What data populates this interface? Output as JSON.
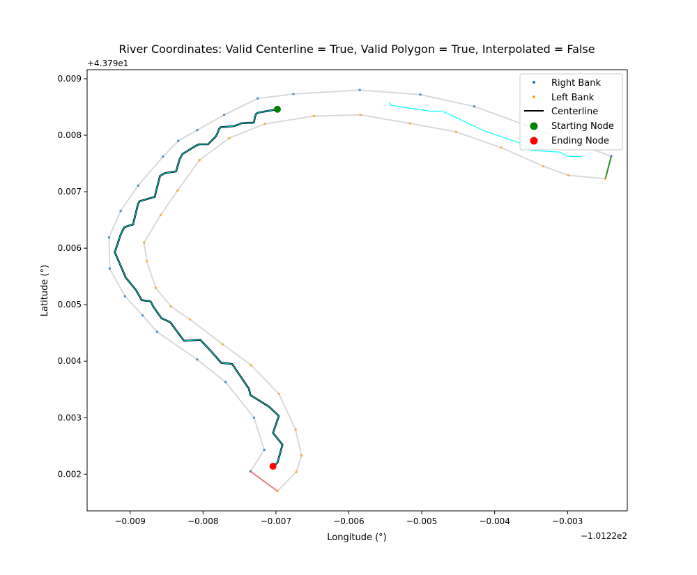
{
  "chart_data": {
    "type": "line",
    "title": "River Coordinates: Valid Centerline = True, Valid Polygon = True, Interpolated = False",
    "xlabel": "Longitude (°)",
    "ylabel": "Latitude (°)",
    "x_offset_label": "−1.0122e2",
    "y_offset_label": "+4.379e1",
    "xlim": [
      -0.00959,
      -0.00218
    ],
    "ylim": [
      0.00135,
      0.00916
    ],
    "xticks": [
      -0.009,
      -0.008,
      -0.007,
      -0.006,
      -0.005,
      -0.004,
      -0.003
    ],
    "xtick_labels": [
      "−0.009",
      "−0.008",
      "−0.007",
      "−0.006",
      "−0.005",
      "−0.004",
      "−0.003"
    ],
    "yticks": [
      0.002,
      0.003,
      0.004,
      0.005,
      0.006,
      0.007,
      0.008,
      0.009
    ],
    "ytick_labels": [
      "0.002",
      "0.003",
      "0.004",
      "0.005",
      "0.006",
      "0.007",
      "0.008",
      "0.009"
    ],
    "grid": false,
    "legend": {
      "position": "top-right",
      "entries": [
        {
          "label": "Right Bank",
          "marker": "dot",
          "color": "#1f77b4"
        },
        {
          "label": "Left Bank",
          "marker": "dot",
          "color": "#ff9f0a"
        },
        {
          "label": "Centerline",
          "marker": "line",
          "color": "#000000"
        },
        {
          "label": "Starting Node",
          "marker": "circle",
          "color": "#008000"
        },
        {
          "label": "Ending Node",
          "marker": "circle",
          "color": "#ff0000"
        }
      ]
    },
    "series": [
      {
        "name": "Right Bank",
        "color": "#1f77b4",
        "outline_color": "#d9d9d9",
        "points": [
          [
            -0.0024,
            0.00763
          ],
          [
            -0.00358,
            0.00818
          ],
          [
            -0.00428,
            0.00851
          ],
          [
            -0.00502,
            0.00872
          ],
          [
            -0.00585,
            0.0088
          ],
          [
            -0.00676,
            0.00873
          ],
          [
            -0.00725,
            0.00865
          ],
          [
            -0.00771,
            0.00836
          ],
          [
            -0.00808,
            0.00809
          ],
          [
            -0.00834,
            0.0079
          ],
          [
            -0.00855,
            0.00762
          ],
          [
            -0.00889,
            0.00711
          ],
          [
            -0.00913,
            0.00666
          ],
          [
            -0.00929,
            0.00619
          ],
          [
            -0.00928,
            0.00564
          ],
          [
            -0.00907,
            0.00515
          ],
          [
            -0.00883,
            0.00481
          ],
          [
            -0.00863,
            0.00452
          ],
          [
            -0.00808,
            0.00403
          ],
          [
            -0.00769,
            0.00363
          ],
          [
            -0.0073,
            0.003
          ],
          [
            -0.00716,
            0.00243
          ],
          [
            -0.00735,
            0.00205
          ]
        ]
      },
      {
        "name": "Left Bank",
        "color": "#ff9f0a",
        "outline_color": "#d9d9d9",
        "points": [
          [
            -0.00248,
            0.00723
          ],
          [
            -0.00299,
            0.00729
          ],
          [
            -0.00333,
            0.00745
          ],
          [
            -0.00391,
            0.00778
          ],
          [
            -0.00453,
            0.00806
          ],
          [
            -0.00516,
            0.00821
          ],
          [
            -0.00584,
            0.00836
          ],
          [
            -0.00648,
            0.00834
          ],
          [
            -0.00715,
            0.0082
          ],
          [
            -0.00764,
            0.00795
          ],
          [
            -0.00805,
            0.00756
          ],
          [
            -0.00835,
            0.00702
          ],
          [
            -0.00858,
            0.00659
          ],
          [
            -0.00881,
            0.0061
          ],
          [
            -0.00877,
            0.00577
          ],
          [
            -0.00865,
            0.0053
          ],
          [
            -0.00844,
            0.00497
          ],
          [
            -0.00818,
            0.00474
          ],
          [
            -0.00773,
            0.0043
          ],
          [
            -0.00734,
            0.00393
          ],
          [
            -0.00696,
            0.00342
          ],
          [
            -0.00673,
            0.00279
          ],
          [
            -0.00665,
            0.00233
          ],
          [
            -0.00672,
            0.00204
          ],
          [
            -0.00698,
            0.0017
          ]
        ]
      },
      {
        "name": "Centerline",
        "color": "#00bfbf",
        "points": [
          [
            -0.00698,
            0.00846
          ],
          [
            -0.00724,
            0.0084
          ],
          [
            -0.00727,
            0.00838
          ],
          [
            -0.00729,
            0.00832
          ],
          [
            -0.0073,
            0.00823
          ],
          [
            -0.00732,
            0.00822
          ],
          [
            -0.00738,
            0.00822
          ],
          [
            -0.00748,
            0.00821
          ],
          [
            -0.00753,
            0.00818
          ],
          [
            -0.00758,
            0.00816
          ],
          [
            -0.00776,
            0.00814
          ],
          [
            -0.00778,
            0.00811
          ],
          [
            -0.00781,
            0.00801
          ],
          [
            -0.00783,
            0.00797
          ],
          [
            -0.00787,
            0.00792
          ],
          [
            -0.00793,
            0.00784
          ],
          [
            -0.00805,
            0.00784
          ],
          [
            -0.00809,
            0.00782
          ],
          [
            -0.00828,
            0.00767
          ],
          [
            -0.00832,
            0.00758
          ],
          [
            -0.00837,
            0.00736
          ],
          [
            -0.00852,
            0.00733
          ],
          [
            -0.00859,
            0.00728
          ],
          [
            -0.00865,
            0.00698
          ],
          [
            -0.00866,
            0.00691
          ],
          [
            -0.00887,
            0.00683
          ],
          [
            -0.00889,
            0.00679
          ],
          [
            -0.00896,
            0.00642
          ],
          [
            -0.00899,
            0.00641
          ],
          [
            -0.00908,
            0.00637
          ],
          [
            -0.00913,
            0.00624
          ],
          [
            -0.00921,
            0.00593
          ],
          [
            -0.00906,
            0.00548
          ],
          [
            -0.00892,
            0.00526
          ],
          [
            -0.00884,
            0.00508
          ],
          [
            -0.00872,
            0.00506
          ],
          [
            -0.00868,
            0.00496
          ],
          [
            -0.00857,
            0.00476
          ],
          [
            -0.00845,
            0.00469
          ],
          [
            -0.00833,
            0.00448
          ],
          [
            -0.00826,
            0.00436
          ],
          [
            -0.00804,
            0.00438
          ],
          [
            -0.0079,
            0.00419
          ],
          [
            -0.00775,
            0.00397
          ],
          [
            -0.0076,
            0.00395
          ],
          [
            -0.00737,
            0.00351
          ],
          [
            -0.00735,
            0.0034
          ],
          [
            -0.00709,
            0.00319
          ],
          [
            -0.00696,
            0.00303
          ],
          [
            -0.00704,
            0.00273
          ],
          [
            -0.00691,
            0.00252
          ],
          [
            -0.00698,
            0.0022
          ],
          [
            -0.00704,
            0.00214
          ]
        ]
      },
      {
        "name": "Auxiliary Line",
        "color": "#00ffff",
        "points": [
          [
            -0.00545,
            0.00858
          ],
          [
            -0.00542,
            0.00853
          ],
          [
            -0.00485,
            0.00842
          ],
          [
            -0.00472,
            0.00843
          ],
          [
            -0.00415,
            0.00808
          ],
          [
            -0.00365,
            0.00786
          ],
          [
            -0.0035,
            0.00773
          ],
          [
            -0.0031,
            0.0077
          ],
          [
            -0.003,
            0.00763
          ],
          [
            -0.0028,
            0.00762
          ]
        ]
      },
      {
        "name": "Inlet Edge",
        "color": "#2e8b22",
        "points": [
          [
            -0.00248,
            0.00723
          ],
          [
            -0.0024,
            0.00763
          ]
        ]
      },
      {
        "name": "Outlet Edge",
        "color": "#e88080",
        "points": [
          [
            -0.00735,
            0.00205
          ],
          [
            -0.00698,
            0.0017
          ]
        ]
      },
      {
        "name": "Starting Node",
        "color": "#008000",
        "points": [
          [
            -0.00698,
            0.00846
          ]
        ]
      },
      {
        "name": "Ending Node",
        "color": "#ff0000",
        "points": [
          [
            -0.00704,
            0.00214
          ]
        ]
      }
    ]
  }
}
